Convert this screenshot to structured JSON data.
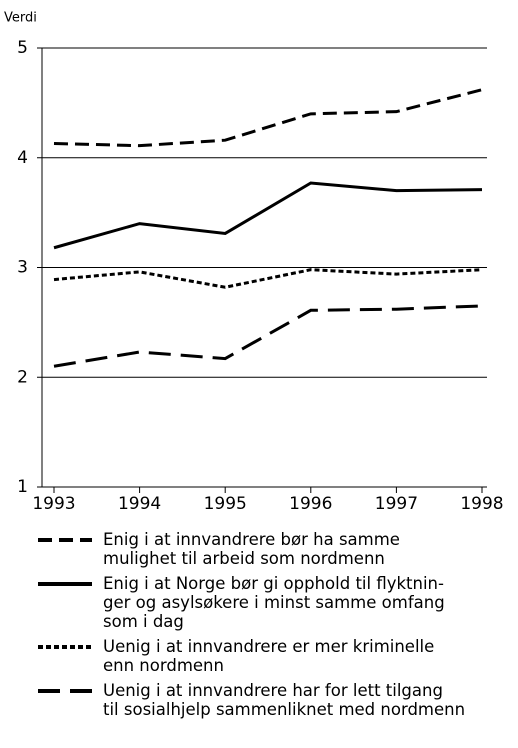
{
  "chart_data": {
    "type": "line",
    "y_label": "Verdi",
    "categories": [
      "1993",
      "1994",
      "1995",
      "1996",
      "1997",
      "1998"
    ],
    "ylim": [
      1,
      5
    ],
    "yticks": [
      1,
      2,
      3,
      4,
      5
    ],
    "grid": true,
    "series": [
      {
        "name": "Enig i at innvandrere bør ha samme\nmulighet til arbeid som nordmenn",
        "color": "#000000",
        "dash": "14 7",
        "values": [
          4.13,
          4.11,
          4.16,
          4.4,
          4.42,
          4.62
        ]
      },
      {
        "name": "Enig i at Norge bør gi opphold til flyktnin-\nger og asylsøkere i minst samme omfang\nsom i dag",
        "color": "#000000",
        "dash": "none",
        "values": [
          3.18,
          3.4,
          3.31,
          3.77,
          3.7,
          3.71
        ]
      },
      {
        "name": "Uenig i at innvandrere er mer kriminelle\nenn nordmenn",
        "color": "#000000",
        "dash": "5 3",
        "values": [
          2.89,
          2.96,
          2.82,
          2.98,
          2.94,
          2.98
        ]
      },
      {
        "name": "Uenig i at innvandrere har for lett tilgang\ntil sosialhjelp sammenliknet med nordmenn",
        "color": "#000000",
        "dash": "22 10",
        "values": [
          2.1,
          2.23,
          2.17,
          2.61,
          2.62,
          2.65
        ]
      }
    ]
  }
}
